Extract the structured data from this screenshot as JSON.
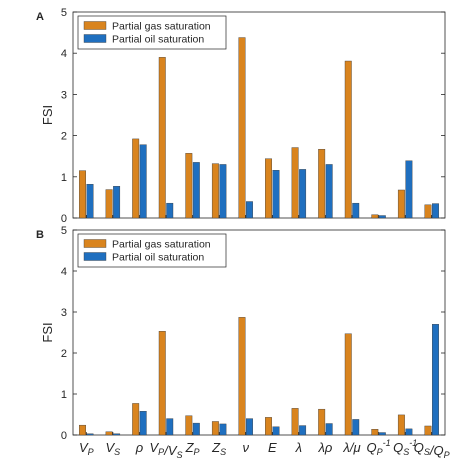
{
  "chart_data": [
    {
      "type": "bar",
      "panel_label": "A",
      "ylabel": "FSI",
      "ylim": [
        0,
        5
      ],
      "yticks": [
        0,
        1,
        2,
        3,
        4,
        5
      ],
      "legend_position": "top-left",
      "categories": [
        "VP",
        "VS",
        "ρ",
        "VP/VS",
        "ZP",
        "ZS",
        "ν",
        "E",
        "λ",
        "λρ",
        "λ/μ",
        "QP^-1",
        "QS^-1",
        "QS/QP"
      ],
      "series": [
        {
          "name": "Partial gas saturation",
          "color": "#D9841E",
          "values": [
            1.15,
            0.69,
            1.92,
            3.9,
            1.57,
            1.32,
            4.38,
            1.44,
            1.71,
            1.67,
            3.81,
            0.08,
            0.68,
            0.32
          ]
        },
        {
          "name": "Partial oil saturation",
          "color": "#1F6FBF",
          "values": [
            0.82,
            0.77,
            1.78,
            0.36,
            1.35,
            1.3,
            0.4,
            1.16,
            1.18,
            1.3,
            0.36,
            0.06,
            1.39,
            0.35
          ]
        }
      ]
    },
    {
      "type": "bar",
      "panel_label": "B",
      "ylabel": "FSI",
      "ylim": [
        0,
        5
      ],
      "yticks": [
        0,
        1,
        2,
        3,
        4,
        5
      ],
      "legend_position": "top-left",
      "categories": [
        "VP",
        "VS",
        "ρ",
        "VP/VS",
        "ZP",
        "ZS",
        "ν",
        "E",
        "λ",
        "λρ",
        "λ/μ",
        "QP^-1",
        "QS^-1",
        "QS/QP"
      ],
      "series": [
        {
          "name": "Partial gas saturation",
          "color": "#D9841E",
          "values": [
            0.24,
            0.08,
            0.77,
            2.53,
            0.47,
            0.33,
            2.87,
            0.43,
            0.65,
            0.63,
            2.47,
            0.14,
            0.49,
            0.22
          ]
        },
        {
          "name": "Partial oil saturation",
          "color": "#1F6FBF",
          "values": [
            0.03,
            0.03,
            0.58,
            0.4,
            0.29,
            0.27,
            0.4,
            0.2,
            0.23,
            0.28,
            0.38,
            0.06,
            0.15,
            2.7
          ]
        }
      ]
    }
  ]
}
